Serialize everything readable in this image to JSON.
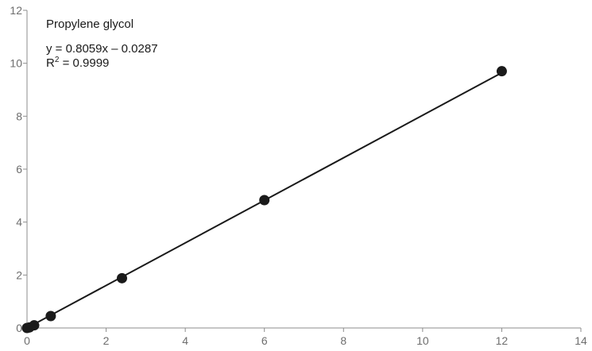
{
  "chart_data": {
    "type": "scatter",
    "title": "",
    "xlabel": "",
    "ylabel": "",
    "xlim": [
      0,
      14
    ],
    "ylim": [
      0,
      12
    ],
    "x_ticks": [
      0,
      2,
      4,
      6,
      8,
      10,
      12,
      14
    ],
    "y_ticks": [
      0,
      2,
      4,
      6,
      8,
      10,
      12
    ],
    "grid": false,
    "series": [
      {
        "name": "Propylene glycol",
        "x": [
          0,
          0.06,
          0.18,
          0.6,
          2.4,
          6,
          12
        ],
        "y": [
          0,
          0.02,
          0.1,
          0.45,
          1.88,
          4.83,
          9.7
        ]
      }
    ],
    "fit": {
      "slope": 0.8059,
      "intercept": -0.0287,
      "x_range": [
        0,
        12
      ]
    },
    "annotations": {
      "compound": "Propylene glycol",
      "equation": "y = 0.8059x – 0.0287",
      "r2_prefix": "R",
      "r2_sup": "2",
      "r2_value": " = 0.9999"
    },
    "colors": {
      "axis": "#8c8c8c",
      "marker": "#1a1a1a",
      "line": "#1a1a1a",
      "tick_text": "#6e6e6e"
    }
  }
}
